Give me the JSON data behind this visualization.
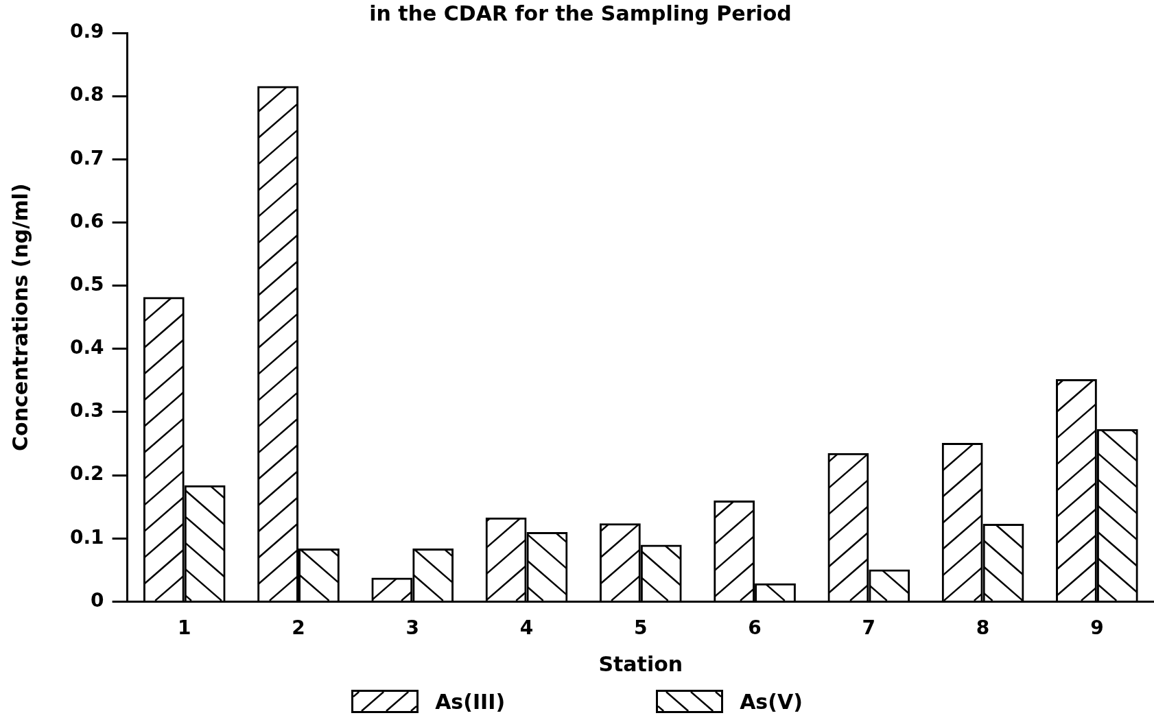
{
  "chart_data": {
    "type": "bar",
    "title": "in the CDAR for the Sampling Period",
    "xlabel": "Station",
    "ylabel": "Concentrations (ng/ml)",
    "categories": [
      "1",
      "2",
      "3",
      "4",
      "5",
      "6",
      "7",
      "8",
      "9"
    ],
    "series": [
      {
        "name": "As(III)",
        "color": "#000000",
        "values": [
          0.482,
          0.816,
          0.038,
          0.133,
          0.124,
          0.16,
          0.235,
          0.251,
          0.352
        ]
      },
      {
        "name": "As(V)",
        "color": "#000000",
        "values": [
          0.184,
          0.084,
          0.084,
          0.11,
          0.09,
          0.029,
          0.051,
          0.123,
          0.273
        ]
      }
    ],
    "ylim": [
      0,
      0.9
    ],
    "yticks": [
      0,
      0.1,
      0.2,
      0.3,
      0.4,
      0.5,
      0.6,
      0.7,
      0.8,
      0.9
    ],
    "grid": false,
    "legend": "bottom"
  }
}
